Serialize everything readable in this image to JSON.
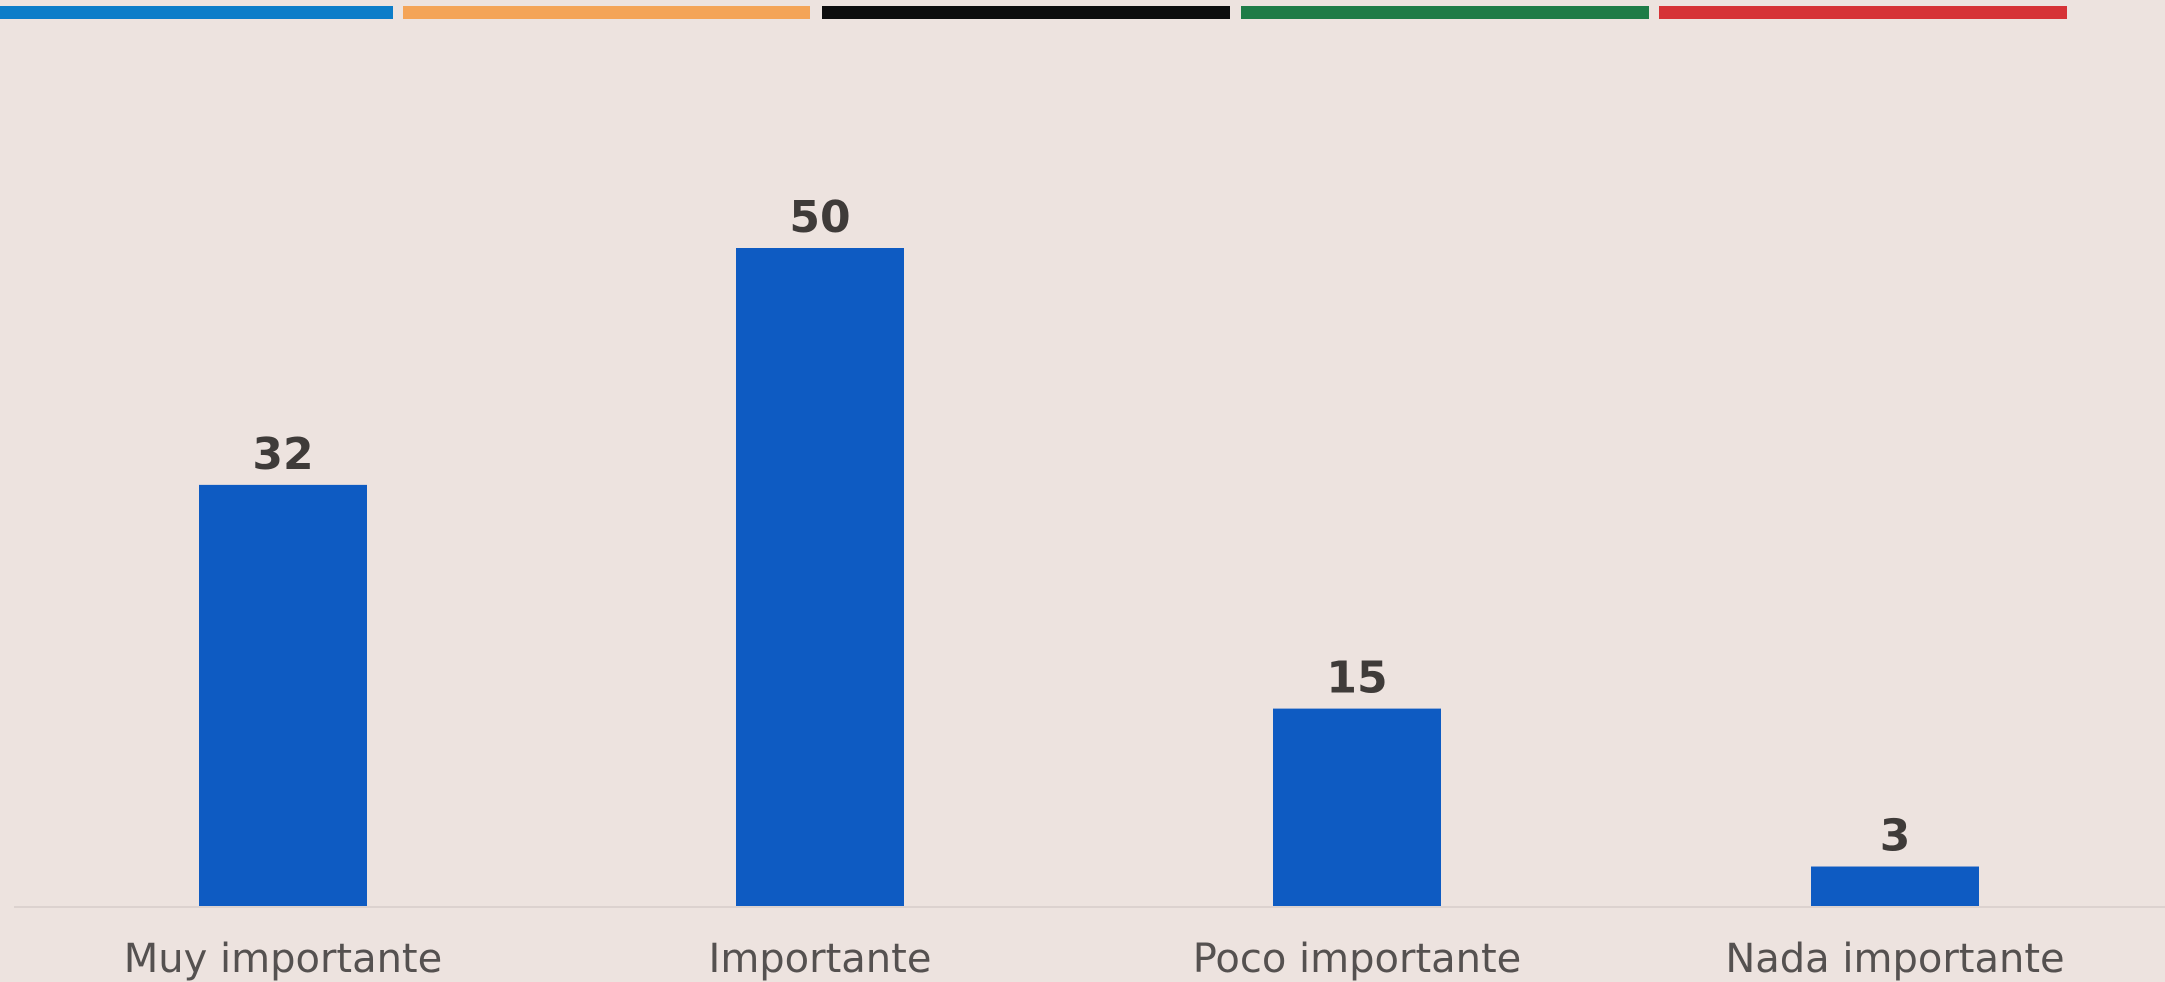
{
  "top_stripe": {
    "colors": [
      "#0c7dc9",
      "#f4a457",
      "#0d0d0d",
      "#1f7c47",
      "#d63236"
    ]
  },
  "colors": {
    "background": "#ede3df",
    "bar": "#0e5bc2",
    "value_text": "#3f3b39",
    "category_text": "#555150",
    "baseline": "#dcd2cf"
  },
  "chart_data": {
    "type": "bar",
    "categories": [
      "Muy importante",
      "Importante",
      "Poco importante",
      "Nada importante"
    ],
    "values": [
      32,
      50,
      15,
      3
    ],
    "value_labels": [
      "32",
      "50",
      "15",
      "3"
    ],
    "title": "",
    "xlabel": "",
    "ylabel": "",
    "ylim": [
      0,
      50
    ],
    "grid": false,
    "legend": "none"
  }
}
